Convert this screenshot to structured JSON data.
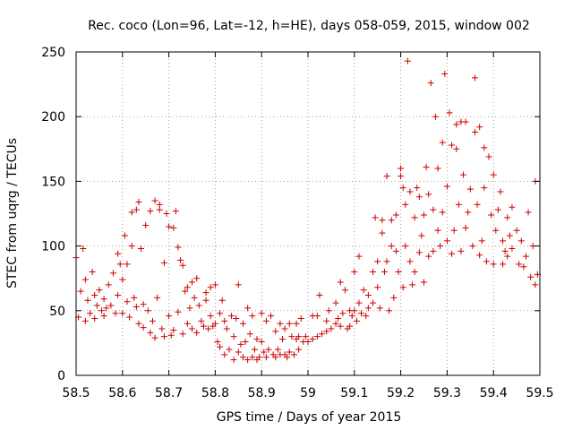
{
  "chart_data": {
    "type": "scatter",
    "title": "Rec. coco (Lon=96, Lat=-12, h=HE), days 058-059, 2015, window 002",
    "xlabel": "GPS time / Days of year 2015",
    "ylabel": "STEC from uqrg / TECUs",
    "xlim": [
      58.5,
      59.5
    ],
    "ylim": [
      0,
      250
    ],
    "xticks": [
      58.5,
      58.6,
      58.7,
      58.8,
      58.9,
      59.0,
      59.1,
      59.2,
      59.3,
      59.4,
      59.5
    ],
    "xtick_labels": [
      "58.5",
      "58.6",
      "58.7",
      "58.8",
      "58.9",
      "59",
      "59.1",
      "59.2",
      "59.3",
      "59.4",
      "59.5"
    ],
    "yticks": [
      0,
      50,
      100,
      150,
      200,
      250
    ],
    "ytick_labels": [
      "0",
      "50",
      "100",
      "150",
      "200",
      "250"
    ],
    "grid": true,
    "marker": "+",
    "marker_color": "#cc0000",
    "points": [
      [
        58.5,
        91
      ],
      [
        58.505,
        45
      ],
      [
        58.51,
        65
      ],
      [
        58.515,
        98
      ],
      [
        58.52,
        42
      ],
      [
        58.52,
        74
      ],
      [
        58.525,
        58
      ],
      [
        58.53,
        48
      ],
      [
        58.535,
        80
      ],
      [
        58.54,
        44
      ],
      [
        58.54,
        62
      ],
      [
        58.545,
        54
      ],
      [
        58.55,
        66
      ],
      [
        58.555,
        50
      ],
      [
        58.56,
        46
      ],
      [
        58.56,
        59
      ],
      [
        58.565,
        52
      ],
      [
        58.57,
        70
      ],
      [
        58.575,
        54
      ],
      [
        58.58,
        79
      ],
      [
        58.585,
        48
      ],
      [
        58.59,
        62
      ],
      [
        58.59,
        94
      ],
      [
        58.595,
        86
      ],
      [
        58.6,
        48
      ],
      [
        58.6,
        74
      ],
      [
        58.605,
        108
      ],
      [
        58.61,
        86
      ],
      [
        58.61,
        57
      ],
      [
        58.615,
        45
      ],
      [
        58.62,
        126
      ],
      [
        58.62,
        100
      ],
      [
        58.625,
        60
      ],
      [
        58.63,
        53
      ],
      [
        58.63,
        128
      ],
      [
        58.635,
        40
      ],
      [
        58.635,
        134
      ],
      [
        58.64,
        98
      ],
      [
        58.645,
        55
      ],
      [
        58.645,
        37
      ],
      [
        58.65,
        116
      ],
      [
        58.655,
        50
      ],
      [
        58.66,
        127
      ],
      [
        58.66,
        33
      ],
      [
        58.665,
        42
      ],
      [
        58.67,
        135
      ],
      [
        58.67,
        29
      ],
      [
        58.675,
        60
      ],
      [
        58.68,
        132
      ],
      [
        58.68,
        128
      ],
      [
        58.685,
        36
      ],
      [
        58.69,
        30
      ],
      [
        58.69,
        87
      ],
      [
        58.695,
        125
      ],
      [
        58.7,
        46
      ],
      [
        58.7,
        115
      ],
      [
        58.705,
        31
      ],
      [
        58.71,
        114
      ],
      [
        58.71,
        35
      ],
      [
        58.715,
        127
      ],
      [
        58.72,
        99
      ],
      [
        58.72,
        49
      ],
      [
        58.725,
        89
      ],
      [
        58.73,
        32
      ],
      [
        58.73,
        85
      ],
      [
        58.735,
        65
      ],
      [
        58.74,
        40
      ],
      [
        58.74,
        68
      ],
      [
        58.745,
        52
      ],
      [
        58.75,
        36
      ],
      [
        58.75,
        72
      ],
      [
        58.755,
        60
      ],
      [
        58.76,
        33
      ],
      [
        58.76,
        75
      ],
      [
        58.765,
        54
      ],
      [
        58.77,
        42
      ],
      [
        58.775,
        38
      ],
      [
        58.78,
        64
      ],
      [
        58.78,
        58
      ],
      [
        58.785,
        36
      ],
      [
        58.79,
        68
      ],
      [
        58.79,
        46
      ],
      [
        58.795,
        38
      ],
      [
        58.8,
        40
      ],
      [
        58.8,
        70
      ],
      [
        58.805,
        26
      ],
      [
        58.81,
        48
      ],
      [
        58.81,
        22
      ],
      [
        58.815,
        58
      ],
      [
        58.82,
        42
      ],
      [
        58.82,
        16
      ],
      [
        58.825,
        36
      ],
      [
        58.83,
        20
      ],
      [
        58.835,
        46
      ],
      [
        58.84,
        12
      ],
      [
        58.84,
        30
      ],
      [
        58.845,
        44
      ],
      [
        58.85,
        18
      ],
      [
        58.85,
        70
      ],
      [
        58.855,
        24
      ],
      [
        58.86,
        14
      ],
      [
        58.86,
        40
      ],
      [
        58.865,
        26
      ],
      [
        58.87,
        12
      ],
      [
        58.87,
        52
      ],
      [
        58.875,
        32
      ],
      [
        58.88,
        14
      ],
      [
        58.88,
        46
      ],
      [
        58.885,
        20
      ],
      [
        58.89,
        28
      ],
      [
        58.89,
        12
      ],
      [
        58.895,
        14
      ],
      [
        58.9,
        26
      ],
      [
        58.9,
        48
      ],
      [
        58.905,
        18
      ],
      [
        58.91,
        14
      ],
      [
        58.91,
        42
      ],
      [
        58.915,
        20
      ],
      [
        58.92,
        46
      ],
      [
        58.925,
        16
      ],
      [
        58.93,
        34
      ],
      [
        58.93,
        14
      ],
      [
        58.935,
        20
      ],
      [
        58.94,
        16
      ],
      [
        58.94,
        40
      ],
      [
        58.945,
        28
      ],
      [
        58.95,
        16
      ],
      [
        58.95,
        36
      ],
      [
        58.955,
        14
      ],
      [
        58.96,
        40
      ],
      [
        58.96,
        18
      ],
      [
        58.965,
        30
      ],
      [
        58.97,
        16
      ],
      [
        58.975,
        40
      ],
      [
        58.975,
        28
      ],
      [
        58.98,
        30
      ],
      [
        58.98,
        20
      ],
      [
        58.985,
        44
      ],
      [
        58.99,
        26
      ],
      [
        58.995,
        30
      ],
      [
        59.0,
        26
      ],
      [
        59.01,
        46
      ],
      [
        59.01,
        28
      ],
      [
        59.02,
        46
      ],
      [
        59.02,
        30
      ],
      [
        59.025,
        62
      ],
      [
        59.03,
        32
      ],
      [
        59.04,
        34
      ],
      [
        59.04,
        42
      ],
      [
        59.045,
        50
      ],
      [
        59.05,
        36
      ],
      [
        59.06,
        40
      ],
      [
        59.06,
        56
      ],
      [
        59.065,
        44
      ],
      [
        59.07,
        72
      ],
      [
        59.07,
        38
      ],
      [
        59.075,
        48
      ],
      [
        59.08,
        66
      ],
      [
        59.085,
        36
      ],
      [
        59.09,
        50
      ],
      [
        59.09,
        38
      ],
      [
        59.095,
        46
      ],
      [
        59.1,
        80
      ],
      [
        59.1,
        50
      ],
      [
        59.105,
        42
      ],
      [
        59.11,
        92
      ],
      [
        59.11,
        56
      ],
      [
        59.115,
        48
      ],
      [
        59.12,
        66
      ],
      [
        59.125,
        46
      ],
      [
        59.13,
        62
      ],
      [
        59.13,
        52
      ],
      [
        59.14,
        80
      ],
      [
        59.14,
        56
      ],
      [
        59.145,
        122
      ],
      [
        59.15,
        68
      ],
      [
        59.15,
        88
      ],
      [
        59.155,
        52
      ],
      [
        59.16,
        120
      ],
      [
        59.16,
        110
      ],
      [
        59.165,
        80
      ],
      [
        59.17,
        154
      ],
      [
        59.17,
        88
      ],
      [
        59.175,
        50
      ],
      [
        59.18,
        100
      ],
      [
        59.18,
        120
      ],
      [
        59.185,
        60
      ],
      [
        59.19,
        124
      ],
      [
        59.19,
        96
      ],
      [
        59.195,
        80
      ],
      [
        59.2,
        160
      ],
      [
        59.2,
        154
      ],
      [
        59.205,
        145
      ],
      [
        59.205,
        68
      ],
      [
        59.21,
        132
      ],
      [
        59.21,
        100
      ],
      [
        59.215,
        243
      ],
      [
        59.22,
        142
      ],
      [
        59.22,
        88
      ],
      [
        59.225,
        70
      ],
      [
        59.23,
        122
      ],
      [
        59.23,
        80
      ],
      [
        59.235,
        145
      ],
      [
        59.24,
        138
      ],
      [
        59.24,
        95
      ],
      [
        59.245,
        108
      ],
      [
        59.25,
        124
      ],
      [
        59.25,
        72
      ],
      [
        59.255,
        161
      ],
      [
        59.26,
        140
      ],
      [
        59.26,
        92
      ],
      [
        59.265,
        226
      ],
      [
        59.27,
        128
      ],
      [
        59.27,
        96
      ],
      [
        59.275,
        200
      ],
      [
        59.28,
        112
      ],
      [
        59.28,
        160
      ],
      [
        59.285,
        100
      ],
      [
        59.29,
        126
      ],
      [
        59.29,
        180
      ],
      [
        59.295,
        233
      ],
      [
        59.3,
        146
      ],
      [
        59.3,
        104
      ],
      [
        59.305,
        203
      ],
      [
        59.31,
        178
      ],
      [
        59.31,
        94
      ],
      [
        59.315,
        112
      ],
      [
        59.32,
        194
      ],
      [
        59.32,
        175
      ],
      [
        59.325,
        132
      ],
      [
        59.33,
        196
      ],
      [
        59.33,
        96
      ],
      [
        59.335,
        155
      ],
      [
        59.34,
        196
      ],
      [
        59.34,
        114
      ],
      [
        59.345,
        126
      ],
      [
        59.35,
        144
      ],
      [
        59.355,
        100
      ],
      [
        59.36,
        230
      ],
      [
        59.36,
        188
      ],
      [
        59.365,
        132
      ],
      [
        59.37,
        192
      ],
      [
        59.37,
        93
      ],
      [
        59.375,
        104
      ],
      [
        59.38,
        145
      ],
      [
        59.38,
        176
      ],
      [
        59.385,
        88
      ],
      [
        59.39,
        169
      ],
      [
        59.395,
        124
      ],
      [
        59.4,
        155
      ],
      [
        59.4,
        86
      ],
      [
        59.405,
        112
      ],
      [
        59.41,
        128
      ],
      [
        59.415,
        142
      ],
      [
        59.42,
        104
      ],
      [
        59.42,
        86
      ],
      [
        59.425,
        96
      ],
      [
        59.43,
        122
      ],
      [
        59.43,
        92
      ],
      [
        59.435,
        108
      ],
      [
        59.44,
        130
      ],
      [
        59.44,
        98
      ],
      [
        59.45,
        112
      ],
      [
        59.455,
        86
      ],
      [
        59.46,
        104
      ],
      [
        59.465,
        84
      ],
      [
        59.47,
        92
      ],
      [
        59.475,
        126
      ],
      [
        59.48,
        76
      ],
      [
        59.485,
        100
      ],
      [
        59.49,
        150
      ],
      [
        59.49,
        70
      ],
      [
        59.495,
        78
      ]
    ]
  }
}
